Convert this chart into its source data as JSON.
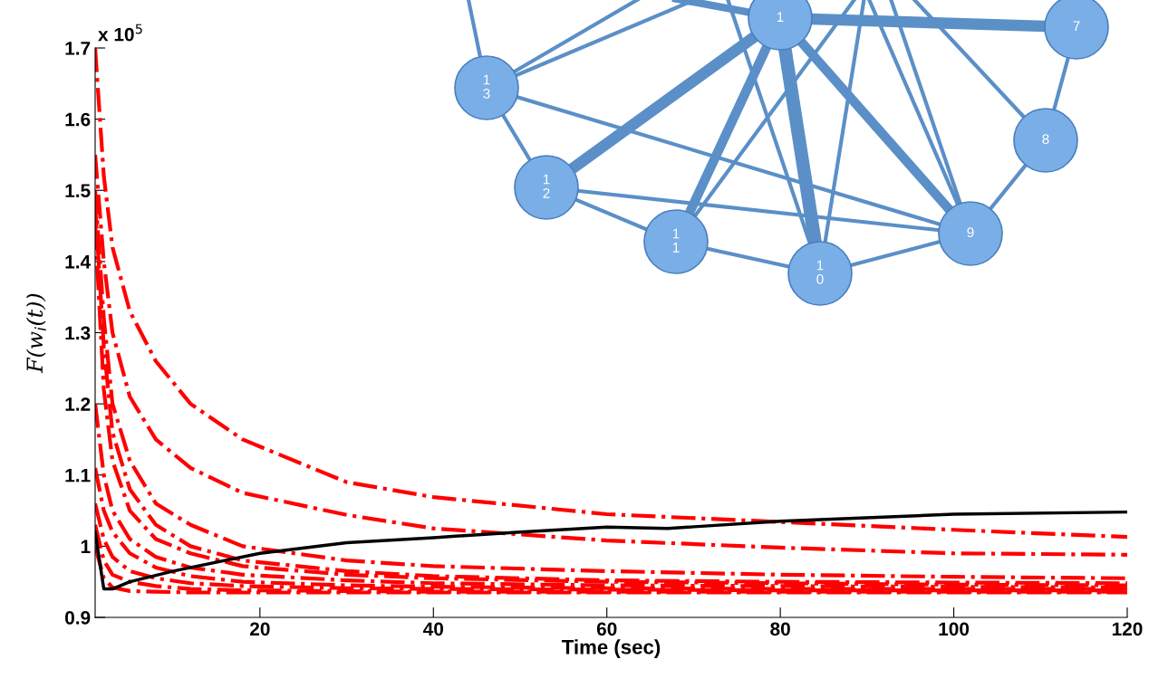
{
  "chart_data": {
    "type": "line",
    "xlabel": "Time (sec)",
    "ylabel": "F(w$_{i}$(t))",
    "xlim": [
      1,
      120
    ],
    "xticks": [
      20,
      40,
      60,
      80,
      100,
      120
    ],
    "ylim": [
      0.9,
      1.7
    ],
    "yticks": [
      0.9,
      1,
      1.1,
      1.2,
      1.3,
      1.4,
      1.5,
      1.6,
      1.7
    ],
    "grid": false,
    "marker": "none",
    "x": [
      1,
      2,
      3,
      5,
      8,
      12,
      18,
      30,
      40,
      60,
      80,
      100,
      120
    ],
    "series": [
      {
        "color": "#ff0000",
        "line_style": "dashdot",
        "values": [
          1.7,
          1.52,
          1.42,
          1.33,
          1.26,
          1.2,
          1.15,
          1.09,
          1.069,
          1.045,
          1.034,
          1.023,
          1.013
        ]
      },
      {
        "color": "#ff0000",
        "line_style": "dashdot",
        "values": [
          1.55,
          1.4,
          1.3,
          1.21,
          1.15,
          1.11,
          1.075,
          1.044,
          1.025,
          1.008,
          0.998,
          0.99,
          0.988
        ]
      },
      {
        "color": "#ff0000",
        "line_style": "dashdot",
        "values": [
          1.5,
          1.32,
          1.2,
          1.12,
          1.06,
          1.03,
          1.0,
          0.98,
          0.972,
          0.965,
          0.96,
          0.957,
          0.955
        ]
      },
      {
        "color": "#ff0000",
        "line_style": "dashdot",
        "values": [
          1.48,
          1.28,
          1.16,
          1.08,
          1.03,
          1.0,
          0.98,
          0.965,
          0.958,
          0.952,
          0.95,
          0.949,
          0.948
        ]
      },
      {
        "color": "#ff0000",
        "line_style": "dashdot",
        "values": [
          1.45,
          1.22,
          1.12,
          1.05,
          1.01,
          0.99,
          0.972,
          0.96,
          0.955,
          0.95,
          0.948,
          0.946,
          0.945
        ]
      },
      {
        "color": "#ff0000",
        "line_style": "dashdot",
        "values": [
          1.2,
          1.1,
          1.05,
          1.01,
          0.985,
          0.97,
          0.96,
          0.952,
          0.948,
          0.945,
          0.944,
          0.943,
          0.942
        ]
      },
      {
        "color": "#ff0000",
        "line_style": "dashdot",
        "values": [
          1.11,
          1.05,
          1.02,
          0.99,
          0.97,
          0.958,
          0.95,
          0.945,
          0.943,
          0.941,
          0.94,
          0.94,
          0.94
        ]
      },
      {
        "color": "#ff0000",
        "line_style": "dashdot",
        "values": [
          1.06,
          1.01,
          0.985,
          0.965,
          0.955,
          0.948,
          0.944,
          0.941,
          0.94,
          0.939,
          0.938,
          0.938,
          0.938
        ]
      },
      {
        "color": "#ff0000",
        "line_style": "dashdot",
        "values": [
          1.03,
          0.98,
          0.96,
          0.95,
          0.944,
          0.94,
          0.938,
          0.937,
          0.936,
          0.936,
          0.936,
          0.936,
          0.936
        ]
      },
      {
        "color": "#ff0000",
        "line_style": "dashdot",
        "values": [
          1.0,
          0.955,
          0.942,
          0.937,
          0.936,
          0.935,
          0.935,
          0.935,
          0.935,
          0.935,
          0.935,
          0.935,
          0.935
        ]
      },
      {
        "color": "#000000",
        "line_style": "solid",
        "x": [
          1,
          2,
          3,
          5,
          10,
          20,
          30,
          40,
          50,
          60,
          67,
          80,
          100,
          120
        ],
        "values": [
          1.02,
          0.94,
          0.94,
          0.95,
          0.965,
          0.99,
          1.005,
          1.012,
          1.02,
          1.027,
          1.025,
          1.035,
          1.045,
          1.048
        ]
      }
    ],
    "annotations": [
      "x 10$^{5}$",
      "1",
      "13",
      "12",
      "11",
      "10",
      "9",
      "8",
      "7"
    ]
  }
}
